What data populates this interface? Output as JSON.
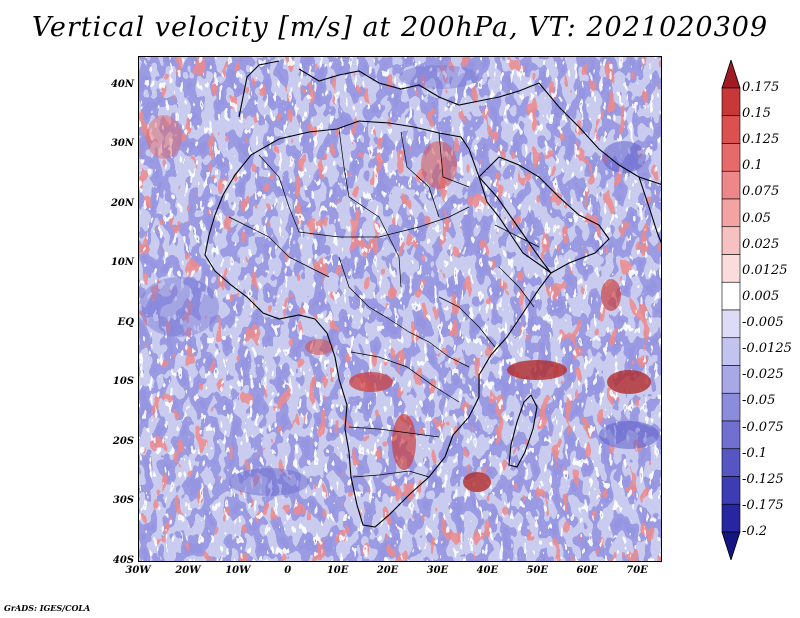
{
  "title": "Vertical velocity [m/s] at 200hPa, VT: 2021020309",
  "credit": "GrADS: IGES/COLA",
  "map": {
    "lat_range": [
      -40,
      45
    ],
    "lon_range": [
      -30,
      75
    ],
    "lat_ticks": [
      "40N",
      "30N",
      "20N",
      "10N",
      "EQ",
      "10S",
      "20S",
      "30S",
      "40S"
    ],
    "lat_values": [
      40,
      30,
      20,
      10,
      0,
      -10,
      -20,
      -30,
      -40
    ],
    "lon_ticks": [
      "30W",
      "20W",
      "10W",
      "0",
      "10E",
      "20E",
      "30E",
      "40E",
      "50E",
      "60E",
      "70E"
    ],
    "lon_values": [
      -30,
      -20,
      -10,
      0,
      10,
      20,
      30,
      40,
      50,
      60,
      70
    ]
  },
  "colorbar": {
    "labels": [
      "0.175",
      "0.15",
      "0.125",
      "0.1",
      "0.075",
      "0.05",
      "0.025",
      "0.0125",
      "0.005",
      "-0.005",
      "-0.0125",
      "-0.025",
      "-0.05",
      "-0.075",
      "-0.1",
      "-0.125",
      "-0.175",
      "-0.2"
    ],
    "colors": [
      "#b2212b",
      "#c93838",
      "#dc5050",
      "#e66a6a",
      "#ee8787",
      "#f4a3a3",
      "#f8c1c1",
      "#fbdcdc",
      "#ffffff",
      "#dcdcf6",
      "#c3c3ef",
      "#a8a8e6",
      "#8c8cdc",
      "#7070d0",
      "#5555c4",
      "#3c3cb4",
      "#2626a0",
      "#14148a"
    ],
    "top_arrow_color": "#a01a24",
    "bottom_arrow_color": "#141482"
  }
}
